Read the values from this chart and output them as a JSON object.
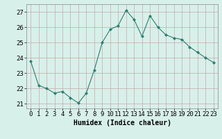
{
  "x": [
    0,
    1,
    2,
    3,
    4,
    5,
    6,
    7,
    8,
    9,
    10,
    11,
    12,
    13,
    14,
    15,
    16,
    17,
    18,
    19,
    20,
    21,
    22,
    23
  ],
  "y": [
    23.8,
    22.2,
    22.0,
    21.7,
    21.8,
    21.4,
    21.05,
    21.7,
    23.2,
    25.0,
    25.85,
    26.1,
    27.1,
    26.5,
    25.4,
    26.75,
    26.0,
    25.5,
    25.3,
    25.2,
    24.7,
    24.35,
    24.0,
    23.7
  ],
  "line_color": "#2e7d6e",
  "marker": "D",
  "marker_size": 2.5,
  "bg_color": "#d8f0ea",
  "grid_color": "#c0ddd8",
  "xlabel": "Humidex (Indice chaleur)",
  "ylim": [
    20.7,
    27.5
  ],
  "yticks": [
    21,
    22,
    23,
    24,
    25,
    26,
    27
  ],
  "xticks": [
    0,
    1,
    2,
    3,
    4,
    5,
    6,
    7,
    8,
    9,
    10,
    11,
    12,
    13,
    14,
    15,
    16,
    17,
    18,
    19,
    20,
    21,
    22,
    23
  ],
  "xlabel_fontsize": 7,
  "tick_fontsize": 6.5
}
